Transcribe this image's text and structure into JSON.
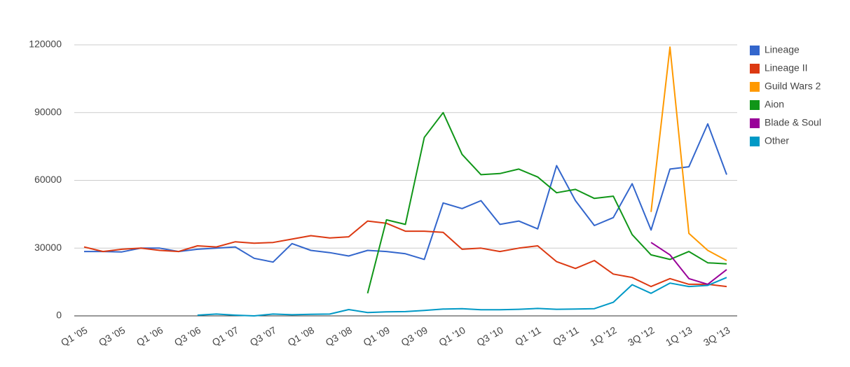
{
  "chart_data": {
    "type": "line",
    "categories": [
      "Q1 '05",
      null,
      "Q3 '05",
      null,
      "Q1 '06",
      null,
      "Q3 '06",
      null,
      "Q1 '07",
      null,
      "Q3 '07",
      null,
      "Q1 '08",
      null,
      "Q3 '08",
      null,
      "Q1 '09",
      null,
      "Q3 '09",
      null,
      "Q1 '10",
      null,
      "Q3 '10",
      null,
      "Q1 '11",
      null,
      "Q3 '11",
      null,
      "1Q '12",
      null,
      "3Q '12",
      null,
      "1Q '13",
      null,
      "3Q '13"
    ],
    "series": [
      {
        "name": "Lineage",
        "color": "#3366cc",
        "values": [
          28500,
          28500,
          28300,
          30000,
          30000,
          28500,
          29500,
          30000,
          30500,
          25500,
          23800,
          32000,
          29000,
          28000,
          26500,
          29000,
          28500,
          27500,
          25000,
          50000,
          47500,
          51000,
          40500,
          42000,
          38500,
          66500,
          51000,
          40000,
          43500,
          58500,
          38000,
          65000,
          66000,
          85000,
          62500
        ]
      },
      {
        "name": "Lineage II",
        "color": "#dc3912",
        "values": [
          30500,
          28500,
          29500,
          30000,
          29000,
          28500,
          31000,
          30500,
          32800,
          32200,
          32500,
          34000,
          35500,
          34500,
          35000,
          42000,
          41000,
          37500,
          37500,
          37000,
          29500,
          30000,
          28500,
          30000,
          31000,
          24000,
          21000,
          24500,
          18500,
          17000,
          13000,
          16500,
          14000,
          14000,
          13000
        ]
      },
      {
        "name": "Guild Wars 2",
        "color": "#ff9900",
        "values": [
          null,
          null,
          null,
          null,
          null,
          null,
          null,
          null,
          null,
          null,
          null,
          null,
          null,
          null,
          null,
          null,
          null,
          null,
          null,
          null,
          null,
          null,
          null,
          null,
          null,
          null,
          null,
          null,
          null,
          null,
          46000,
          119000,
          36500,
          29000,
          24500
        ]
      },
      {
        "name": "Aion",
        "color": "#109618",
        "values": [
          null,
          null,
          null,
          null,
          null,
          null,
          null,
          null,
          null,
          null,
          null,
          null,
          null,
          null,
          null,
          10000,
          42500,
          40500,
          79000,
          90000,
          71500,
          62500,
          63000,
          65000,
          61500,
          54500,
          56000,
          52000,
          53000,
          36000,
          27000,
          25000,
          28500,
          23500,
          23000
        ]
      },
      {
        "name": "Blade & Soul",
        "color": "#990099",
        "values": [
          null,
          null,
          null,
          null,
          null,
          null,
          null,
          null,
          null,
          null,
          null,
          null,
          null,
          null,
          null,
          null,
          null,
          null,
          null,
          null,
          null,
          null,
          null,
          null,
          null,
          null,
          null,
          null,
          null,
          null,
          32500,
          27000,
          16500,
          14000,
          20500
        ]
      },
      {
        "name": "Other",
        "color": "#0099c6",
        "values": [
          null,
          null,
          null,
          null,
          null,
          null,
          300,
          800,
          300,
          0,
          800,
          500,
          700,
          800,
          2800,
          1500,
          1800,
          1900,
          2400,
          3000,
          3200,
          2700,
          2700,
          2900,
          3300,
          2900,
          3000,
          3200,
          6000,
          13800,
          10000,
          14500,
          13000,
          13500,
          17000
        ]
      }
    ],
    "ylim": [
      0,
      120000
    ],
    "yticks": [
      0,
      30000,
      60000,
      90000,
      120000
    ],
    "grid": true,
    "legend": "right"
  }
}
